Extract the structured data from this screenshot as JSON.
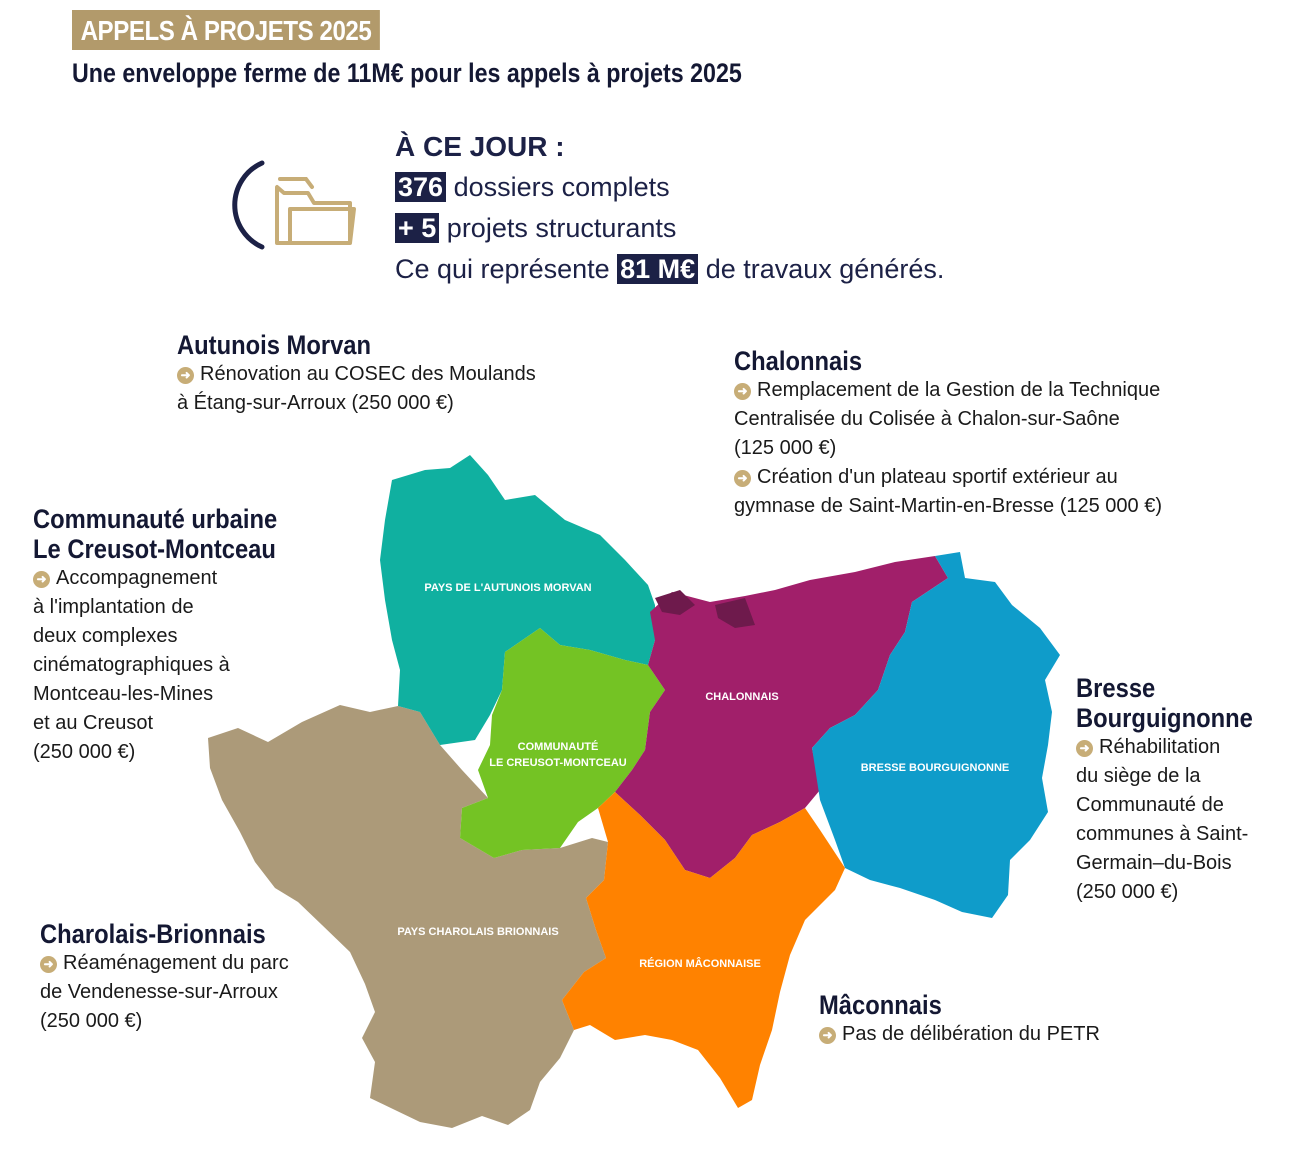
{
  "header": {
    "tag": "APPELS À PROJETS 2025",
    "subtitle": "Une enveloppe ferme de 11M€ pour les appels à projets 2025"
  },
  "summary": {
    "icon": "folder-icon",
    "heading": "À CE JOUR :",
    "dossiers_count": "376",
    "dossiers_text": " dossiers complets",
    "projets_count": "+ 5",
    "projets_text": " projets structurants",
    "travaux_prefix": "Ce qui représente ",
    "travaux_amount": "81 M€",
    "travaux_suffix": " de travaux générés."
  },
  "colors": {
    "navy": "#1c2146",
    "gold": "#b29a6b",
    "autunois": "#10b0a0",
    "creusot": "#74c324",
    "chalonnais": "#a11f6a",
    "bresse": "#0f9cca",
    "charolais": "#ac9a79",
    "maconnais": "#ff8200"
  },
  "map": {
    "labels": {
      "autunois_1": "PAYS DE L'AUTUNOIS MORVAN",
      "creusot_1": "COMMUNAUTÉ",
      "creusot_2": "LE CREUSOT-MONTCEAU",
      "chalonnais_1": "CHALONNAIS",
      "bresse_1": "BRESSE BOURGUIGNONNE",
      "charolais_1": "PAYS CHAROLAIS BRIONNAIS",
      "maconnais_1": "RÉGION MÂCONNAISE"
    }
  },
  "regions": {
    "autunois": {
      "title": "Autunois Morvan",
      "lines": [
        "Rénovation au COSEC des Moulands",
        "à Étang-sur-Arroux (250 000 €)"
      ]
    },
    "chalonnais": {
      "title": "Chalonnais",
      "lines": [
        "Remplacement de la Gestion de la Technique",
        "Centralisée du Colisée à Chalon-sur-Saône",
        "(125 000 €)",
        "Création d'un plateau sportif extérieur au",
        "gymnase de Saint-Martin-en-Bresse (125 000 €)"
      ]
    },
    "creusot": {
      "title_1": "Communauté urbaine",
      "title_2": "Le Creusot-Montceau",
      "lines": [
        "Accompagnement",
        "à l'implantation de",
        "deux complexes",
        "cinématographiques à",
        "Montceau-les-Mines",
        "et au Creusot",
        "(250 000 €)"
      ]
    },
    "bresse": {
      "title_1": "Bresse",
      "title_2": "Bourguignonne",
      "lines": [
        "Réhabilitation",
        "du siège de la",
        "Communauté de",
        "communes à Saint-",
        "Germain–du-Bois",
        "(250 000 €)"
      ]
    },
    "charolais": {
      "title": "Charolais-Brionnais",
      "lines": [
        "Réaménagement du parc",
        "de Vendenesse-sur-Arroux",
        "(250 000 €)"
      ]
    },
    "maconnais": {
      "title": "Mâconnais",
      "lines": [
        "Pas de délibération du PETR"
      ]
    }
  }
}
